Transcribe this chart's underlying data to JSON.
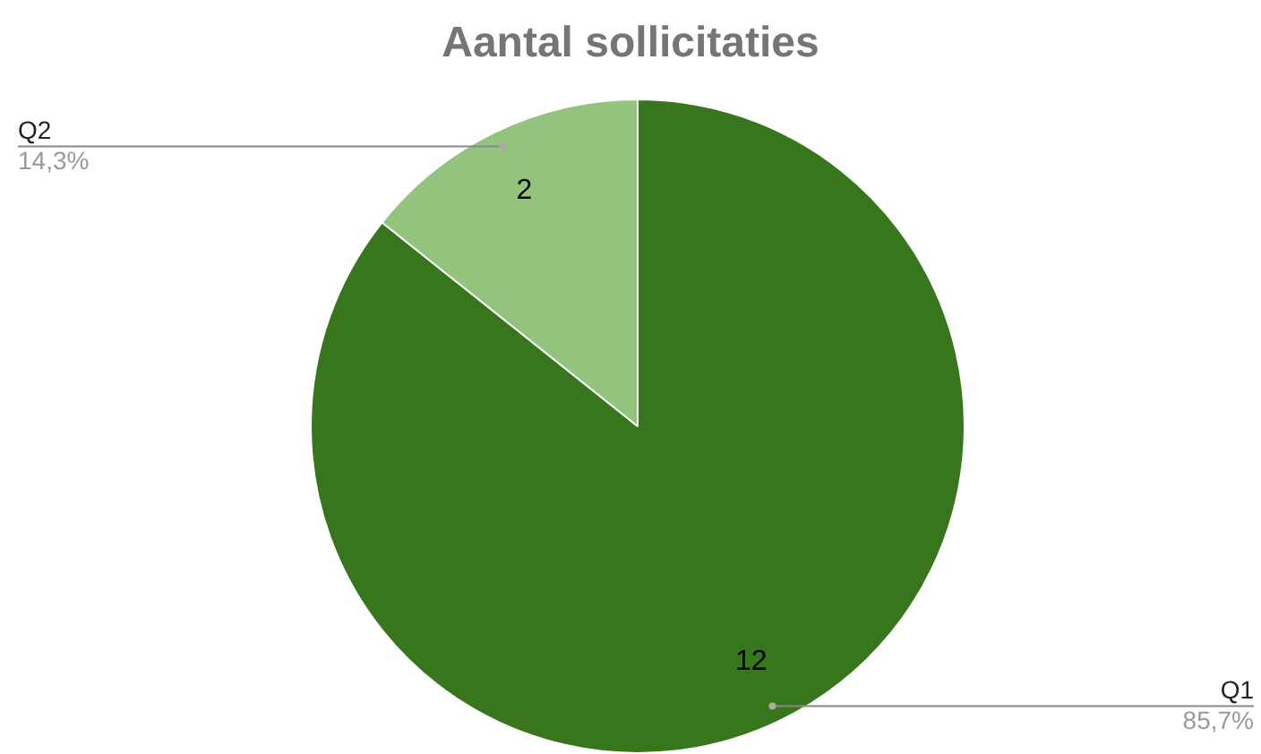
{
  "chart_data": {
    "type": "pie",
    "title": "Aantal sollicitaties",
    "categories": [
      "Q1",
      "Q2"
    ],
    "values": [
      12,
      2
    ],
    "colors": [
      "#38761d",
      "#93c47d"
    ],
    "data_labels": true,
    "annotations": [
      "85,7%",
      "14,3%"
    ],
    "legend": false
  }
}
